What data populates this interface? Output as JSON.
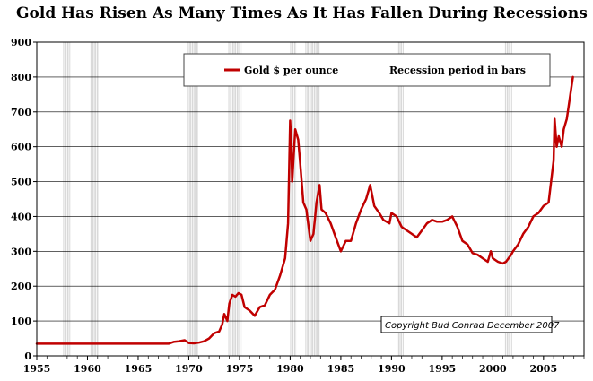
{
  "chart_data": {
    "type": "line",
    "title": "Gold Has Risen As Many Times As It Has Fallen During Recessions",
    "xlabel": "",
    "ylabel": "",
    "xlim": [
      1955,
      2009
    ],
    "ylim": [
      0,
      900
    ],
    "x_ticks": [
      1955,
      1960,
      1965,
      1970,
      1975,
      1980,
      1985,
      1990,
      1995,
      2000,
      2005
    ],
    "y_ticks": [
      0,
      100,
      200,
      300,
      400,
      500,
      600,
      700,
      800,
      900
    ],
    "grid": true,
    "legend_position": "top",
    "legend": [
      "Gold $ per ounce",
      "Recession period in bars"
    ],
    "annotation": "Copyright Bud Conrad December 2007",
    "colors": {
      "line": "#c00000",
      "recession": "#d9d9d9",
      "grid": "#000000"
    },
    "recessions": [
      [
        1957.6,
        1958.3
      ],
      [
        1960.3,
        1961.1
      ],
      [
        1969.9,
        1970.9
      ],
      [
        1973.9,
        1975.2
      ],
      [
        1980.0,
        1980.6
      ],
      [
        1981.5,
        1982.9
      ],
      [
        1990.5,
        1991.2
      ],
      [
        2001.2,
        2001.9
      ]
    ],
    "series": [
      {
        "name": "Gold $ per ounce",
        "x": [
          1955,
          1960,
          1965,
          1968,
          1968.5,
          1969,
          1969.6,
          1970,
          1970.5,
          1971,
          1971.5,
          1972,
          1972.5,
          1973,
          1973.3,
          1973.5,
          1973.8,
          1974,
          1974.3,
          1974.6,
          1974.9,
          1975.2,
          1975.5,
          1976,
          1976.5,
          1977,
          1977.5,
          1978,
          1978.5,
          1979,
          1979.5,
          1979.8,
          1980,
          1980.1,
          1980.2,
          1980.3,
          1980.5,
          1980.8,
          1981,
          1981.3,
          1981.6,
          1982,
          1982.3,
          1982.6,
          1982.9,
          1983.1,
          1983.5,
          1984,
          1984.5,
          1985,
          1985.5,
          1986,
          1986.5,
          1987,
          1987.5,
          1987.9,
          1988.3,
          1988.8,
          1989.2,
          1989.8,
          1990,
          1990.5,
          1991,
          1991.5,
          1992,
          1992.5,
          1993,
          1993.5,
          1994,
          1994.5,
          1995,
          1995.5,
          1996,
          1996.5,
          1997,
          1997.5,
          1998,
          1998.5,
          1999,
          1999.5,
          1999.8,
          2000,
          2000.5,
          2001,
          2001.3,
          2001.8,
          2002,
          2002.5,
          2003,
          2003.5,
          2004,
          2004.5,
          2005,
          2005.5,
          2006,
          2006.1,
          2006.3,
          2006.5,
          2006.8,
          2007,
          2007.3,
          2007.6,
          2007.9
        ],
        "values": [
          35,
          35,
          35,
          35,
          40,
          42,
          45,
          37,
          36,
          38,
          42,
          50,
          65,
          70,
          90,
          120,
          100,
          150,
          175,
          170,
          180,
          175,
          140,
          130,
          115,
          140,
          145,
          175,
          190,
          230,
          280,
          380,
          675,
          620,
          500,
          550,
          650,
          620,
          550,
          440,
          420,
          330,
          350,
          440,
          490,
          420,
          410,
          380,
          340,
          300,
          330,
          330,
          380,
          420,
          450,
          490,
          430,
          410,
          390,
          380,
          410,
          400,
          370,
          360,
          350,
          340,
          360,
          380,
          390,
          385,
          385,
          390,
          400,
          370,
          330,
          320,
          295,
          290,
          280,
          270,
          300,
          280,
          270,
          265,
          270,
          290,
          300,
          320,
          350,
          370,
          400,
          410,
          430,
          440,
          560,
          680,
          600,
          630,
          600,
          650,
          680,
          740,
          800
        ]
      }
    ]
  }
}
